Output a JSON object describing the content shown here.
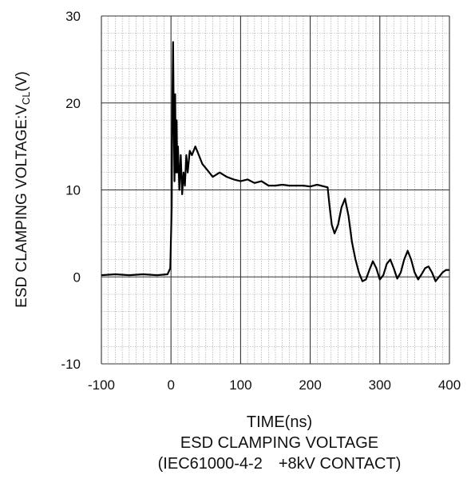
{
  "chart_data": {
    "type": "line",
    "title": "ESD CLAMPING VOLTAGE",
    "subtitle": "(IEC61000-4-2　+8kV CONTACT)",
    "xlabel": "TIME(ns)",
    "ylabel": {
      "main": "ESD CLAMPING VOLTAGE:V",
      "sub": "CL",
      "unit": "(V)"
    },
    "xlim": [
      -100,
      400
    ],
    "ylim": [
      -10,
      30
    ],
    "x_ticks": [
      -100,
      0,
      100,
      200,
      300,
      400
    ],
    "y_ticks": [
      -10,
      0,
      10,
      20,
      30
    ],
    "grid": true,
    "series": [
      {
        "color": "#000000",
        "x": [
          -100,
          -80,
          -60,
          -40,
          -20,
          -5,
          -1,
          1,
          2,
          3,
          4,
          5,
          6,
          7,
          8,
          9,
          10,
          12,
          14,
          16,
          18,
          20,
          22,
          24,
          27,
          30,
          35,
          40,
          45,
          50,
          55,
          60,
          70,
          80,
          90,
          100,
          110,
          120,
          130,
          140,
          150,
          160,
          170,
          180,
          190,
          200,
          210,
          220,
          225,
          228,
          231,
          235,
          240,
          245,
          250,
          255,
          260,
          265,
          270,
          275,
          280,
          285,
          290,
          295,
          300,
          305,
          310,
          315,
          320,
          325,
          330,
          335,
          340,
          345,
          350,
          355,
          360,
          365,
          370,
          375,
          380,
          385,
          390,
          395,
          400
        ],
        "y": [
          0.2,
          0.3,
          0.2,
          0.3,
          0.2,
          0.3,
          1.0,
          8.0,
          20.0,
          27.0,
          18.0,
          11.0,
          21.0,
          12.0,
          18.0,
          12.0,
          15.0,
          10.0,
          14.0,
          9.5,
          12.0,
          10.5,
          14.0,
          12.0,
          14.5,
          14.0,
          15.0,
          14.0,
          13.0,
          12.5,
          12.0,
          11.5,
          12.0,
          11.5,
          11.2,
          11.0,
          11.2,
          10.8,
          11.0,
          10.5,
          10.5,
          10.6,
          10.5,
          10.5,
          10.5,
          10.4,
          10.6,
          10.4,
          10.3,
          8.0,
          6.0,
          5.0,
          6.0,
          8.0,
          9.0,
          7.0,
          4.0,
          2.0,
          0.5,
          -0.5,
          -0.3,
          0.8,
          1.8,
          1.0,
          -0.3,
          0.2,
          1.5,
          2.0,
          1.0,
          -0.2,
          0.5,
          2.0,
          3.0,
          2.0,
          0.5,
          -0.3,
          0.3,
          1.0,
          1.2,
          0.5,
          -0.5,
          0.0,
          0.5,
          0.8,
          0.8
        ]
      }
    ]
  }
}
